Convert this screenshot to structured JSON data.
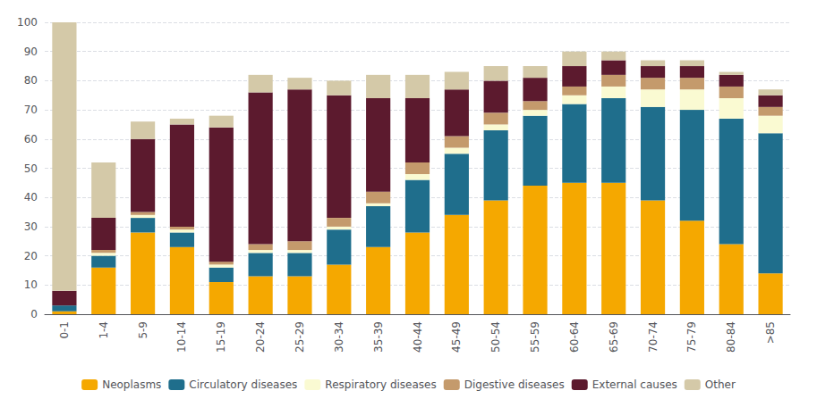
{
  "chart_data": {
    "type": "bar",
    "stacked": true,
    "categories": [
      "0-1",
      "1-4",
      "5-9",
      "10-14",
      "15-19",
      "20-24",
      "25-29",
      "30-34",
      "35-39",
      "40-44",
      "45-49",
      "50-54",
      "55-59",
      "60-64",
      "65-69",
      "70-74",
      "75-79",
      "80-84",
      ">85"
    ],
    "series": [
      {
        "name": "Neoplasms",
        "color": "#F5A800",
        "values": [
          1,
          16,
          28,
          23,
          11,
          13,
          13,
          17,
          23,
          28,
          34,
          39,
          44,
          45,
          45,
          39,
          32,
          24,
          14
        ]
      },
      {
        "name": "Circulatory diseases",
        "color": "#1F6E8C",
        "values": [
          2,
          4,
          5,
          5,
          5,
          8,
          8,
          12,
          14,
          18,
          21,
          24,
          24,
          27,
          29,
          32,
          38,
          43,
          48
        ]
      },
      {
        "name": "Respiratory diseases",
        "color": "#FAFAD2",
        "values": [
          0,
          1,
          1,
          1,
          1,
          1,
          1,
          1,
          1,
          2,
          2,
          2,
          2,
          3,
          4,
          6,
          7,
          7,
          6
        ]
      },
      {
        "name": "Digestive diseases",
        "color": "#C49A6C",
        "values": [
          0,
          1,
          1,
          1,
          1,
          2,
          3,
          3,
          4,
          4,
          4,
          4,
          3,
          3,
          4,
          4,
          4,
          4,
          3
        ]
      },
      {
        "name": "External causes",
        "color": "#5C1A2E",
        "values": [
          5,
          11,
          25,
          35,
          46,
          52,
          52,
          42,
          32,
          22,
          16,
          11,
          8,
          7,
          5,
          4,
          4,
          4,
          4
        ]
      },
      {
        "name": "Other",
        "color": "#D4C9A8",
        "values": [
          92,
          19,
          6,
          2,
          4,
          6,
          4,
          5,
          8,
          8,
          6,
          5,
          4,
          5,
          3,
          2,
          2,
          1,
          2
        ]
      }
    ],
    "ylim": [
      0,
      100
    ],
    "yticks": [
      0,
      10,
      20,
      30,
      40,
      50,
      60,
      70,
      80,
      90,
      100
    ],
    "grid": true,
    "legend": "bottom"
  }
}
